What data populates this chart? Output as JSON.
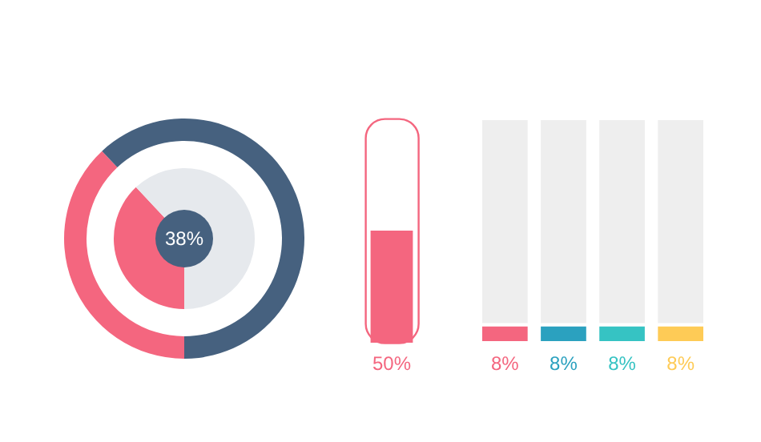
{
  "chart_data": [
    {
      "type": "donut",
      "categories": [
        null,
        null
      ],
      "series": [
        {
          "values": [
            38,
            62
          ],
          "colors": [
            "#f4667f",
            "#46617f"
          ]
        },
        {
          "values": [
            38,
            62
          ],
          "colors": [
            "#f4667f",
            "#e6e9ed"
          ]
        }
      ],
      "value_labels": [
        "38%",
        null
      ]
    },
    {
      "type": "bar",
      "categories": [
        null
      ],
      "values": [
        50
      ],
      "colors": [
        "#f4667f"
      ],
      "value_labels": [
        "50%"
      ],
      "ylim": [
        0,
        100
      ],
      "tick_labels": false
    },
    {
      "type": "bar",
      "categories": [
        null,
        null,
        null,
        null
      ],
      "stacked": true,
      "series": [
        {
          "values": [
            8,
            8,
            8,
            8
          ],
          "colors": [
            "#f4667f",
            "#2ba1bf",
            "#36c3c3",
            "#fecb56"
          ],
          "value_labels": [
            "8%",
            "8%",
            "8%",
            "8%"
          ]
        },
        {
          "values": [
            92,
            92,
            92,
            92
          ],
          "color": "#eeeeee"
        }
      ],
      "ylim": [
        0,
        100
      ],
      "tick_labels": false
    }
  ]
}
